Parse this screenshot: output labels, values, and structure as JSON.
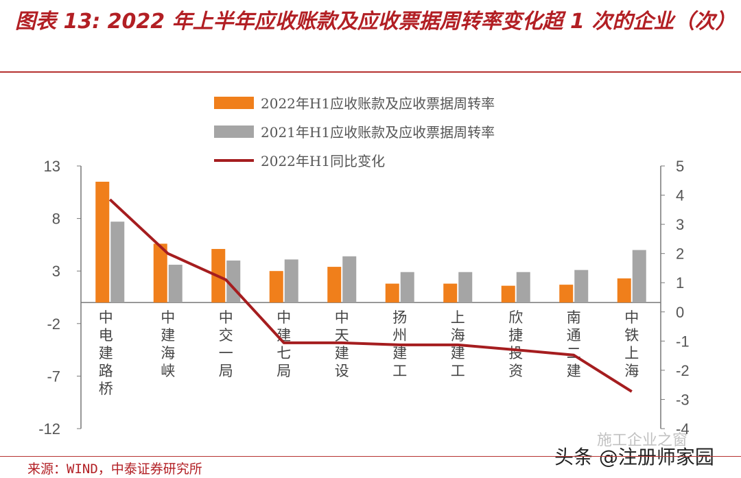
{
  "title": "图表 13: 2022 年上半年应收账款及应收票据周转率变化超 1 次的企业（次）",
  "source": "来源：WIND，中泰证券研究所",
  "watermark": {
    "line1": "施工企业之窗",
    "line2": "头条 @注册师家园"
  },
  "colors": {
    "orange": "#f07f1b",
    "grey": "#a5a5a5",
    "line": "#a51d1f",
    "title": "#b21f24"
  },
  "chart_data": {
    "type": "bar+line",
    "categories": [
      "中电建路桥",
      "中建海峡",
      "中交一局",
      "中建七局",
      "中天建设",
      "扬州建工",
      "上海建工",
      "欣捷投资",
      "南通二建",
      "中铁上海"
    ],
    "series": [
      {
        "name": "2022年H1应收账款及应收票据周转率",
        "type": "bar",
        "axis": "left",
        "values": [
          11.5,
          5.6,
          5.1,
          3.0,
          3.4,
          1.8,
          1.8,
          1.6,
          1.7,
          2.3
        ]
      },
      {
        "name": "2021年H1应收账款及应收票据周转率",
        "type": "bar",
        "axis": "left",
        "values": [
          7.7,
          3.6,
          4.0,
          4.1,
          4.4,
          2.9,
          2.9,
          2.9,
          3.1,
          5.0
        ]
      },
      {
        "name": "2022年H1同比变化",
        "type": "line",
        "axis": "right",
        "values": [
          3.85,
          2.0,
          1.1,
          -1.06,
          -1.06,
          -1.13,
          -1.13,
          -1.3,
          -1.48,
          -2.73
        ]
      }
    ],
    "left_axis": {
      "range": [
        -12,
        13
      ],
      "ticks": [
        "13",
        "8",
        "3",
        "-2",
        "-7",
        "-12"
      ]
    },
    "right_axis": {
      "range": [
        -4,
        5
      ],
      "ticks": [
        "5",
        "4",
        "3",
        "2",
        "1",
        "0",
        "-1",
        "-2",
        "-3",
        "-4"
      ]
    },
    "legend_position": "top-center",
    "grid": false
  }
}
